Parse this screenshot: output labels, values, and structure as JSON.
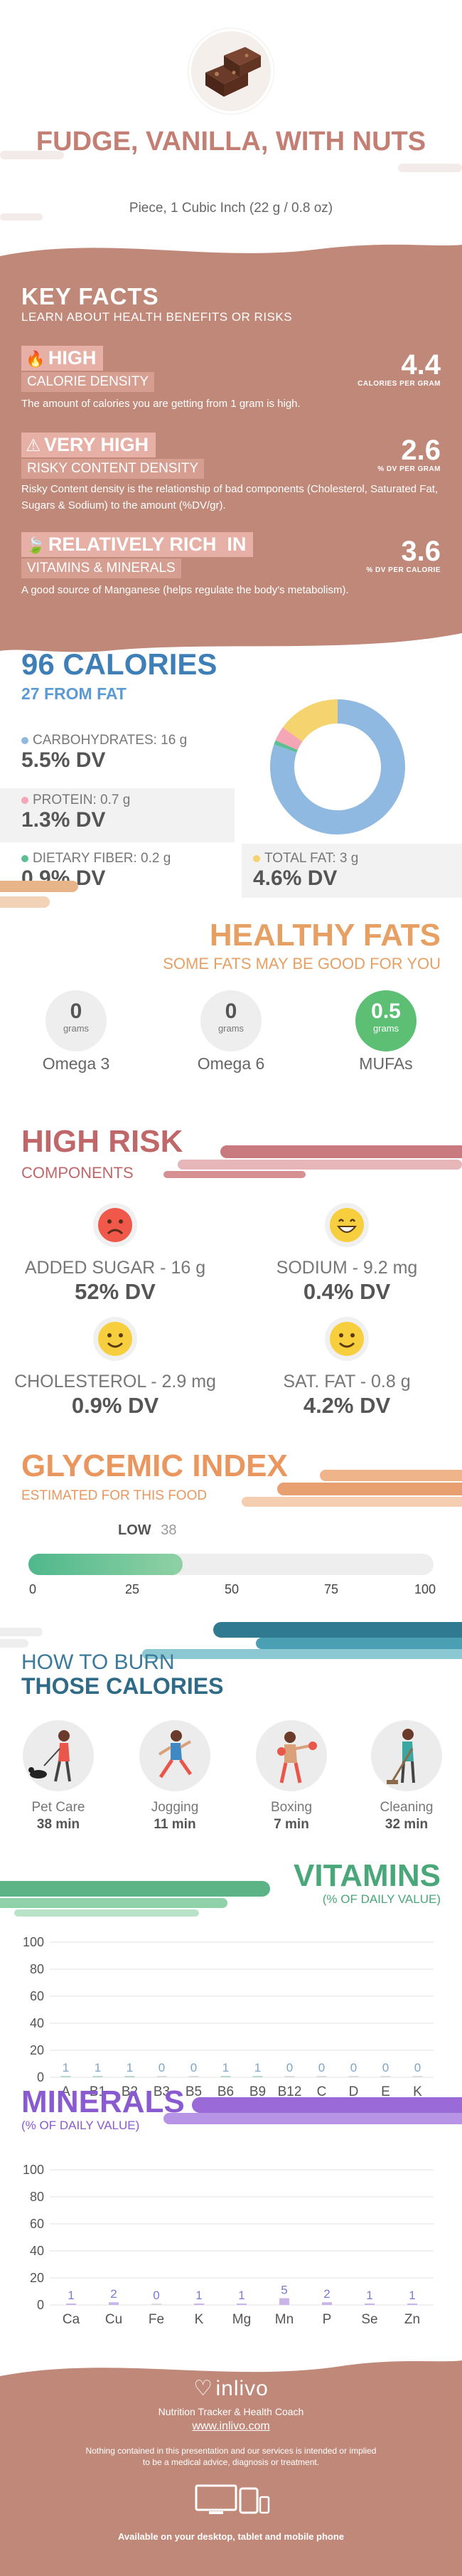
{
  "header": {
    "food_name": "FUDGE, VANILLA, WITH NUTS",
    "portion": "Piece, 1 Cubic Inch (22 g / 0.8 oz)",
    "image_icon": "fudge-photo-icon"
  },
  "key_facts": {
    "title": "KEY FACTS",
    "subtitle": "LEARN ABOUT HEALTH BENEFITS OR RISKS",
    "rows": [
      {
        "level": "HIGH",
        "label": "CALORIE DENSITY",
        "value": "4.4",
        "unit": "CALORIES PER GRAM",
        "description": "The amount of calories you are getting from 1 gram is high.",
        "icon": "flame-icon"
      },
      {
        "level": "VERY HIGH",
        "label": "RISKY CONTENT DENSITY",
        "value": "2.6",
        "unit": "% DV PER GRAM",
        "description": "Risky Content density is the relationship of bad components (Cholesterol, Saturated Fat, Sugars & Sodium) to the amount (%DV/gr).",
        "icon": "warning-icon"
      },
      {
        "level": "RELATIVELY RICH  IN",
        "label": "VITAMINS & MINERALS",
        "value": "3.6",
        "unit": "% DV PER CALORIE",
        "description": "A good source of Manganese (helps regulate the body's metabolism).",
        "icon": "leaf-icon"
      }
    ]
  },
  "calories": {
    "title": "96 CALORIES",
    "from_fat": "27 FROM FAT",
    "nutrients": [
      {
        "name": "CARBOHYDRATES: 16 g",
        "dv": "5.5% DV",
        "color": "#8fb9e0"
      },
      {
        "name": "PROTEIN: 0.7 g",
        "dv": "1.3% DV",
        "color": "#f4a6b6"
      },
      {
        "name": "DIETARY FIBER: 0.2 g",
        "dv": "0.9% DV",
        "color": "#5cbf94"
      },
      {
        "name": "TOTAL FAT: 3 g",
        "dv": "4.6% DV",
        "color": "#f5d36e"
      }
    ]
  },
  "chart_data": [
    {
      "type": "pie",
      "categories": [
        "Carbohydrates",
        "Protein",
        "Dietary Fiber",
        "Total Fat"
      ],
      "values": [
        16,
        0.7,
        0.2,
        3
      ],
      "colors": [
        "#8fb9e0",
        "#f4a6b6",
        "#5cbf94",
        "#f5d36e"
      ]
    },
    {
      "type": "bar",
      "title": "VITAMINS",
      "subtitle": "(% OF DAILY VALUE)",
      "categories": [
        "A",
        "B1",
        "B2",
        "B3",
        "B5",
        "B6",
        "B9",
        "B12",
        "C",
        "D",
        "E",
        "K"
      ],
      "values": [
        1,
        1,
        1,
        0,
        0,
        1,
        1,
        0,
        0,
        0,
        0,
        0
      ],
      "ylim": [
        0,
        100
      ],
      "yticks": [
        0,
        20,
        40,
        60,
        80,
        100
      ],
      "grid": true
    },
    {
      "type": "bar",
      "title": "MINERALS",
      "subtitle": "(% OF DAILY VALUE)",
      "categories": [
        "Ca",
        "Cu",
        "Fe",
        "K",
        "Mg",
        "Mn",
        "P",
        "Se",
        "Zn"
      ],
      "values": [
        1,
        2,
        0,
        1,
        1,
        5,
        2,
        1,
        1
      ],
      "ylim": [
        0,
        100
      ],
      "yticks": [
        0,
        20,
        40,
        60,
        80,
        100
      ],
      "grid": true
    }
  ],
  "healthy_fats": {
    "title": "HEALTHY FATS",
    "subtitle": "SOME FATS MAY BE GOOD FOR YOU",
    "unit": "grams",
    "items": [
      {
        "name": "Omega 3",
        "value": "0"
      },
      {
        "name": "Omega 6",
        "value": "0"
      },
      {
        "name": "MUFAs",
        "value": "0.5"
      }
    ]
  },
  "high_risk": {
    "title": "HIGH RISK",
    "subtitle": "COMPONENTS",
    "items": [
      {
        "name": "ADDED SUGAR - 16 g",
        "dv": "52% DV",
        "face": "sad"
      },
      {
        "name": "SODIUM - 9.2 mg",
        "dv": "0.4% DV",
        "face": "grin"
      },
      {
        "name": "CHOLESTEROL - 2.9 mg",
        "dv": "0.9% DV",
        "face": "smile"
      },
      {
        "name": "SAT. FAT - 0.8 g",
        "dv": "4.2% DV",
        "face": "smile"
      }
    ]
  },
  "glycemic": {
    "title": "GLYCEMIC INDEX",
    "subtitle": "ESTIMATED FOR THIS FOOD",
    "level": "LOW",
    "value": "38",
    "value_num": 38,
    "ticks": [
      "0",
      "25",
      "50",
      "75",
      "100"
    ]
  },
  "burn": {
    "title_line1": "HOW TO BURN",
    "title_line2": "THOSE CALORIES",
    "items": [
      {
        "name": "Pet Care",
        "time": "38 min",
        "icon": "dog-walking-icon"
      },
      {
        "name": "Jogging",
        "time": "11 min",
        "icon": "jogging-icon"
      },
      {
        "name": "Boxing",
        "time": "7 min",
        "icon": "boxing-icon"
      },
      {
        "name": "Cleaning",
        "time": "32 min",
        "icon": "cleaning-icon"
      }
    ]
  },
  "footer": {
    "brand": "inlivo",
    "tagline": "Nutrition Tracker & Health Coach",
    "url": "www.inlivo.com",
    "disclaimer_1": "Nothing contained in this presentation and our services is intended or implied",
    "disclaimer_2": "to be a medical advice, diagnosis or treatment.",
    "available": "Available on your desktop, tablet and mobile phone"
  }
}
